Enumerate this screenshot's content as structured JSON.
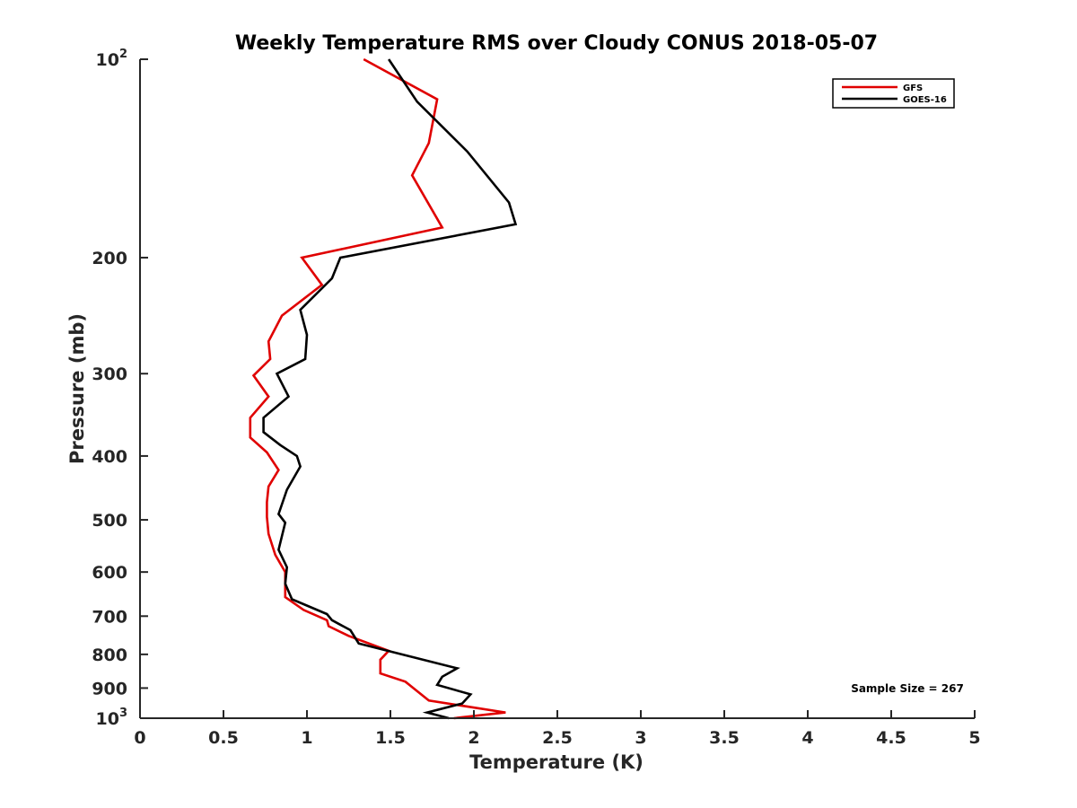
{
  "chart_data": {
    "type": "line",
    "title": "Weekly Temperature RMS over Cloudy CONUS 2018-05-07",
    "xlabel": "Temperature (K)",
    "ylabel": "Pressure (mb)",
    "xlim": [
      0,
      5
    ],
    "ylim": [
      100,
      1000
    ],
    "y_scale": "log",
    "y_reversed": true,
    "grid": false,
    "legend_position": "top-right",
    "x_ticks": [
      "0",
      "0.5",
      "1",
      "1.5",
      "2",
      "2.5",
      "3",
      "3.5",
      "4",
      "4.5",
      "5"
    ],
    "y_ticks": [
      {
        "value": 100,
        "base": "10",
        "exp": "2",
        "label": ""
      },
      {
        "value": 200,
        "label": "200"
      },
      {
        "value": 300,
        "label": "300"
      },
      {
        "value": 400,
        "label": "400"
      },
      {
        "value": 500,
        "label": "500"
      },
      {
        "value": 600,
        "label": "600"
      },
      {
        "value": 700,
        "label": "700"
      },
      {
        "value": 800,
        "label": "800"
      },
      {
        "value": 900,
        "label": "900"
      },
      {
        "value": 1000,
        "base": "10",
        "exp": "3",
        "label": ""
      }
    ],
    "annotation": "Sample Size = 267",
    "series": [
      {
        "name": "GFS",
        "color": "#e00000",
        "points": [
          [
            1.34,
            100
          ],
          [
            1.78,
            115
          ],
          [
            1.73,
            134
          ],
          [
            1.63,
            150
          ],
          [
            1.81,
            180
          ],
          [
            0.97,
            200
          ],
          [
            1.09,
            220
          ],
          [
            0.85,
            245
          ],
          [
            0.77,
            268
          ],
          [
            0.78,
            285
          ],
          [
            0.68,
            302
          ],
          [
            0.77,
            325
          ],
          [
            0.66,
            350
          ],
          [
            0.66,
            375
          ],
          [
            0.76,
            395
          ],
          [
            0.83,
            420
          ],
          [
            0.77,
            445
          ],
          [
            0.76,
            470
          ],
          [
            0.76,
            495
          ],
          [
            0.77,
            525
          ],
          [
            0.81,
            565
          ],
          [
            0.87,
            600
          ],
          [
            0.87,
            655
          ],
          [
            0.98,
            685
          ],
          [
            1.12,
            710
          ],
          [
            1.13,
            725
          ],
          [
            1.25,
            750
          ],
          [
            1.49,
            790
          ],
          [
            1.44,
            815
          ],
          [
            1.44,
            855
          ],
          [
            1.59,
            880
          ],
          [
            1.73,
            940
          ],
          [
            2.19,
            980
          ],
          [
            1.88,
            1000
          ]
        ]
      },
      {
        "name": "GOES-16",
        "color": "#000000",
        "points": [
          [
            1.49,
            100
          ],
          [
            1.66,
            116
          ],
          [
            1.96,
            138
          ],
          [
            2.21,
            165
          ],
          [
            2.25,
            178
          ],
          [
            1.2,
            200
          ],
          [
            1.15,
            215
          ],
          [
            0.96,
            240
          ],
          [
            1.0,
            262
          ],
          [
            0.99,
            285
          ],
          [
            0.82,
            300
          ],
          [
            0.89,
            325
          ],
          [
            0.74,
            350
          ],
          [
            0.74,
            368
          ],
          [
            0.84,
            385
          ],
          [
            0.94,
            400
          ],
          [
            0.96,
            415
          ],
          [
            0.88,
            450
          ],
          [
            0.83,
            490
          ],
          [
            0.87,
            505
          ],
          [
            0.83,
            555
          ],
          [
            0.88,
            590
          ],
          [
            0.87,
            625
          ],
          [
            0.91,
            660
          ],
          [
            1.12,
            695
          ],
          [
            1.15,
            710
          ],
          [
            1.26,
            735
          ],
          [
            1.31,
            770
          ],
          [
            1.9,
            840
          ],
          [
            1.81,
            865
          ],
          [
            1.78,
            890
          ],
          [
            1.98,
            920
          ],
          [
            1.93,
            950
          ],
          [
            1.72,
            980
          ],
          [
            1.85,
            1000
          ]
        ]
      }
    ]
  }
}
